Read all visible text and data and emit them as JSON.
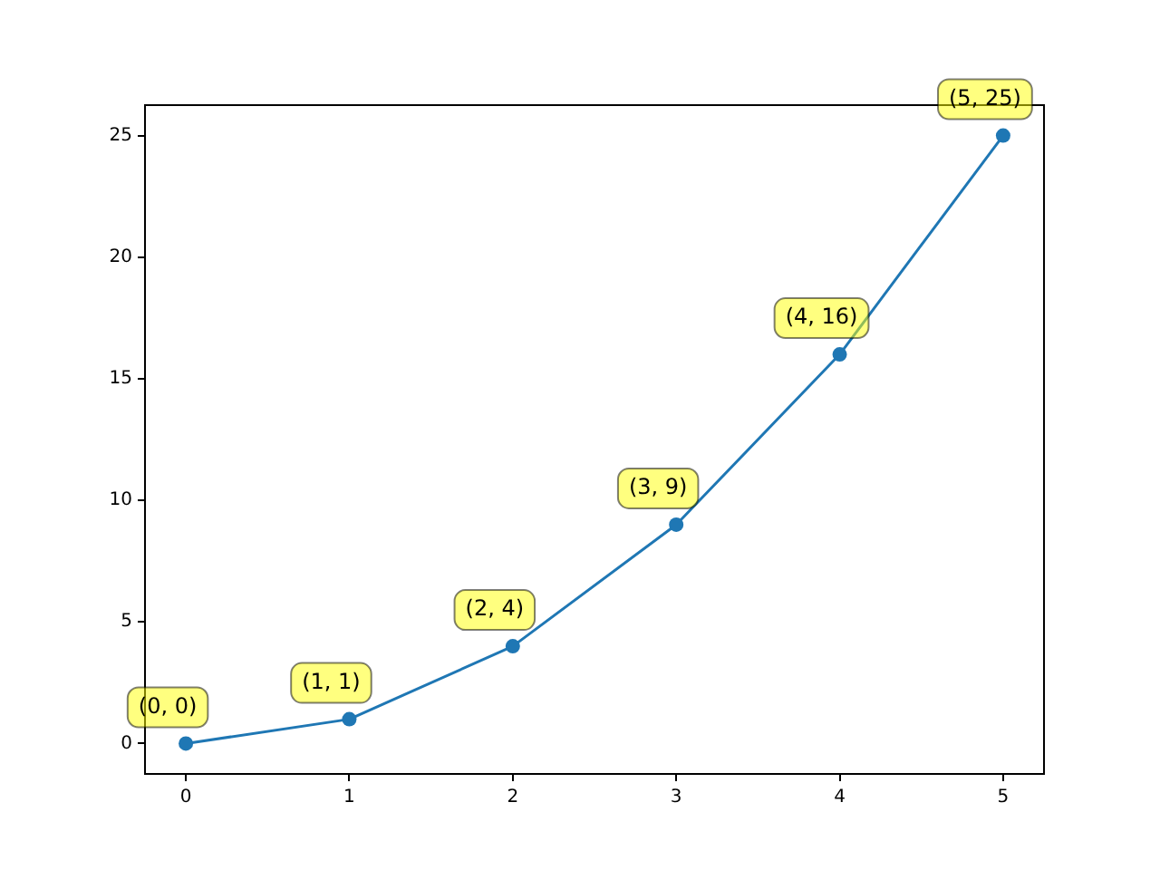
{
  "chart_data": {
    "type": "line",
    "x": [
      0,
      1,
      2,
      3,
      4,
      5
    ],
    "series": [
      {
        "color": "#1f77b4",
        "values": [
          0,
          1,
          4,
          9,
          16,
          25
        ],
        "value_labels": [
          "(0, 0)",
          "(1, 1)",
          "(2, 4)",
          "(3, 9)",
          "(4, 16)",
          "(5, 25)"
        ]
      }
    ],
    "xlim": [
      -0.25,
      5.25
    ],
    "xticks": [
      0,
      1,
      2,
      3,
      4,
      5
    ],
    "ylim": [
      -1.25,
      26.25
    ],
    "yticks": [
      0,
      5,
      10,
      15,
      20,
      25
    ],
    "marker": "circle",
    "line_style": "solid",
    "grid": false,
    "legend": false
  }
}
